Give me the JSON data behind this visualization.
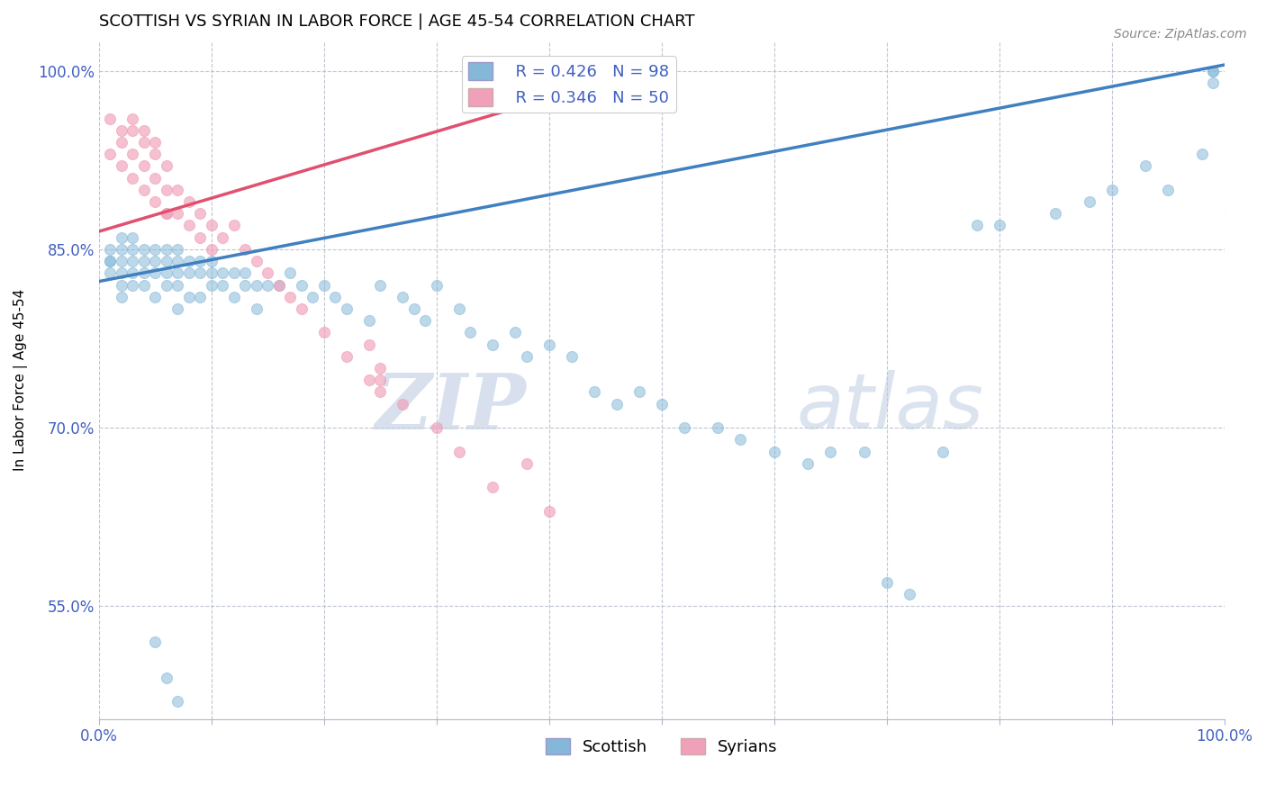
{
  "title": "SCOTTISH VS SYRIAN IN LABOR FORCE | AGE 45-54 CORRELATION CHART",
  "source": "Source: ZipAtlas.com",
  "ylabel": "In Labor Force | Age 45-54",
  "xlim": [
    0.0,
    1.0
  ],
  "ylim": [
    0.455,
    1.025
  ],
  "xticks": [
    0.0,
    0.1,
    0.2,
    0.3,
    0.4,
    0.5,
    0.6,
    0.7,
    0.8,
    0.9,
    1.0
  ],
  "xticklabels": [
    "0.0%",
    "",
    "",
    "",
    "",
    "",
    "",
    "",
    "",
    "",
    "100.0%"
  ],
  "yticks": [
    0.55,
    0.7,
    0.85,
    1.0
  ],
  "yticklabels": [
    "55.0%",
    "70.0%",
    "85.0%",
    "100.0%"
  ],
  "scottish_color": "#85b8d8",
  "syrian_color": "#f0a0b8",
  "scottish_line_color": "#4080c0",
  "syrian_line_color": "#e05070",
  "R_scottish": 0.426,
  "N_scottish": 98,
  "R_syrian": 0.346,
  "N_syrian": 50,
  "watermark_zip": "ZIP",
  "watermark_atlas": "atlas",
  "tick_color": "#4060c0",
  "scottish_x": [
    0.01,
    0.01,
    0.01,
    0.01,
    0.02,
    0.02,
    0.02,
    0.02,
    0.02,
    0.02,
    0.03,
    0.03,
    0.03,
    0.03,
    0.03,
    0.04,
    0.04,
    0.04,
    0.04,
    0.05,
    0.05,
    0.05,
    0.05,
    0.06,
    0.06,
    0.06,
    0.06,
    0.07,
    0.07,
    0.07,
    0.07,
    0.07,
    0.08,
    0.08,
    0.08,
    0.09,
    0.09,
    0.09,
    0.1,
    0.1,
    0.1,
    0.11,
    0.11,
    0.12,
    0.12,
    0.13,
    0.13,
    0.14,
    0.14,
    0.15,
    0.16,
    0.17,
    0.18,
    0.19,
    0.2,
    0.21,
    0.22,
    0.24,
    0.25,
    0.27,
    0.28,
    0.29,
    0.3,
    0.32,
    0.33,
    0.35,
    0.37,
    0.38,
    0.4,
    0.42,
    0.44,
    0.46,
    0.48,
    0.5,
    0.52,
    0.55,
    0.57,
    0.6,
    0.63,
    0.65,
    0.68,
    0.7,
    0.72,
    0.75,
    0.78,
    0.8,
    0.85,
    0.88,
    0.9,
    0.93,
    0.95,
    0.98,
    0.99,
    0.99,
    0.99,
    0.05,
    0.06,
    0.07
  ],
  "scottish_y": [
    0.84,
    0.84,
    0.85,
    0.83,
    0.86,
    0.85,
    0.84,
    0.83,
    0.82,
    0.81,
    0.86,
    0.85,
    0.84,
    0.83,
    0.82,
    0.85,
    0.84,
    0.83,
    0.82,
    0.85,
    0.84,
    0.83,
    0.81,
    0.85,
    0.84,
    0.83,
    0.82,
    0.85,
    0.84,
    0.83,
    0.82,
    0.8,
    0.84,
    0.83,
    0.81,
    0.84,
    0.83,
    0.81,
    0.84,
    0.83,
    0.82,
    0.83,
    0.82,
    0.83,
    0.81,
    0.83,
    0.82,
    0.82,
    0.8,
    0.82,
    0.82,
    0.83,
    0.82,
    0.81,
    0.82,
    0.81,
    0.8,
    0.79,
    0.82,
    0.81,
    0.8,
    0.79,
    0.82,
    0.8,
    0.78,
    0.77,
    0.78,
    0.76,
    0.77,
    0.76,
    0.73,
    0.72,
    0.73,
    0.72,
    0.7,
    0.7,
    0.69,
    0.68,
    0.67,
    0.68,
    0.68,
    0.57,
    0.56,
    0.68,
    0.87,
    0.87,
    0.88,
    0.89,
    0.9,
    0.92,
    0.9,
    0.93,
    1.0,
    0.99,
    1.0,
    0.52,
    0.49,
    0.47
  ],
  "syrian_x": [
    0.01,
    0.01,
    0.02,
    0.02,
    0.02,
    0.03,
    0.03,
    0.03,
    0.04,
    0.04,
    0.04,
    0.05,
    0.05,
    0.05,
    0.06,
    0.06,
    0.06,
    0.07,
    0.07,
    0.08,
    0.08,
    0.09,
    0.09,
    0.1,
    0.1,
    0.11,
    0.12,
    0.13,
    0.14,
    0.15,
    0.16,
    0.17,
    0.18,
    0.2,
    0.22,
    0.24,
    0.25,
    0.27,
    0.3,
    0.32,
    0.35,
    0.38,
    0.4,
    0.03,
    0.04,
    0.05,
    0.06,
    0.24,
    0.25,
    0.25
  ],
  "syrian_y": [
    0.96,
    0.93,
    0.95,
    0.94,
    0.92,
    0.95,
    0.93,
    0.91,
    0.94,
    0.92,
    0.9,
    0.93,
    0.91,
    0.89,
    0.92,
    0.9,
    0.88,
    0.9,
    0.88,
    0.89,
    0.87,
    0.88,
    0.86,
    0.87,
    0.85,
    0.86,
    0.87,
    0.85,
    0.84,
    0.83,
    0.82,
    0.81,
    0.8,
    0.78,
    0.76,
    0.74,
    0.74,
    0.72,
    0.7,
    0.68,
    0.65,
    0.67,
    0.63,
    0.96,
    0.95,
    0.94,
    0.88,
    0.77,
    0.75,
    0.73
  ],
  "sc_line_x0": 0.0,
  "sc_line_y0": 0.823,
  "sc_line_x1": 1.0,
  "sc_line_y1": 1.005,
  "sy_line_x0": 0.0,
  "sy_line_y0": 0.865,
  "sy_line_x1": 0.5,
  "sy_line_y1": 1.005
}
